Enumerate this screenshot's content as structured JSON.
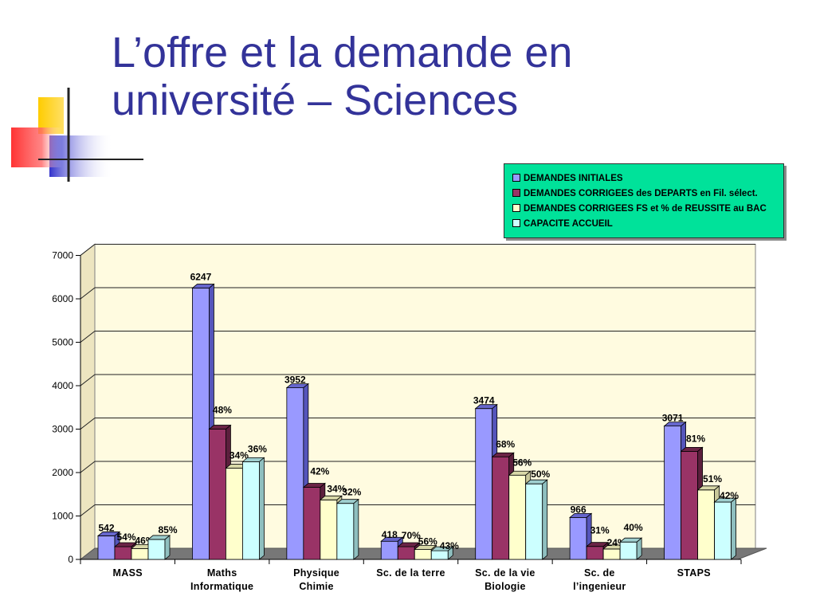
{
  "slide": {
    "title_line1": "L’offre et la demande en",
    "title_line2": "université – Sciences"
  },
  "colors": {
    "title": "#333399",
    "legend_bg": "#00e29a",
    "plot_bg": "#fffbe0",
    "series": [
      "#9999ff",
      "#993366",
      "#ffffcc",
      "#ccffff"
    ]
  },
  "legend": {
    "items": [
      {
        "label": "DEMANDES INITIALES",
        "color": "#9999ff"
      },
      {
        "label": "DEMANDES CORRIGEES des DEPARTS en Fil. sélect.",
        "color": "#993366"
      },
      {
        "label": "DEMANDES CORRIGEES FS et % de REUSSITE au BAC",
        "color": "#ffffcc"
      },
      {
        "label": "CAPACITE ACCUEIL",
        "color": "#ccffff"
      }
    ]
  },
  "chart_data": {
    "type": "bar",
    "style": "3d-clustered",
    "categories": [
      [
        "MASS"
      ],
      [
        "Maths",
        "Informatique"
      ],
      [
        "Physique",
        "Chimie"
      ],
      [
        "Sc. de la terre"
      ],
      [
        "Sc. de la vie",
        "Biologie"
      ],
      [
        "Sc. de",
        "l’ingenieur"
      ],
      [
        "STAPS"
      ]
    ],
    "series": [
      {
        "name": "DEMANDES INITIALES",
        "values": [
          542,
          6247,
          3952,
          418,
          3474,
          966,
          3071
        ],
        "labels": [
          "542",
          "6247",
          "3952",
          "418",
          "3474",
          "966",
          "3071"
        ]
      },
      {
        "name": "DEMANDES CORRIGEES des DEPARTS en Fil. sélect.",
        "values": [
          293,
          2999,
          1660,
          293,
          2362,
          299,
          2488
        ],
        "labels": [
          "54%",
          "48%",
          "42%",
          "70%",
          "68%",
          "31%",
          "81%"
        ]
      },
      {
        "name": "DEMANDES CORRIGEES FS et % de REUSSITE au BAC",
        "values": [
          250,
          2100,
          1370,
          230,
          1940,
          240,
          1600
        ],
        "labels": [
          "46%",
          "34%",
          "34%",
          "56%",
          "56%",
          "24%",
          "51%"
        ]
      },
      {
        "name": "CAPACITE ACCUEIL",
        "values": [
          460,
          2250,
          1290,
          200,
          1740,
          400,
          1320
        ],
        "labels": [
          "85%",
          "36%",
          "32%",
          "43%",
          "50%",
          "40%",
          "42%"
        ]
      }
    ],
    "yticks": [
      "0",
      "1000",
      "2000",
      "3000",
      "4000",
      "5000",
      "6000",
      "7000"
    ],
    "ylim": [
      0,
      7000
    ],
    "grid": true,
    "legend_position": "top-right"
  }
}
